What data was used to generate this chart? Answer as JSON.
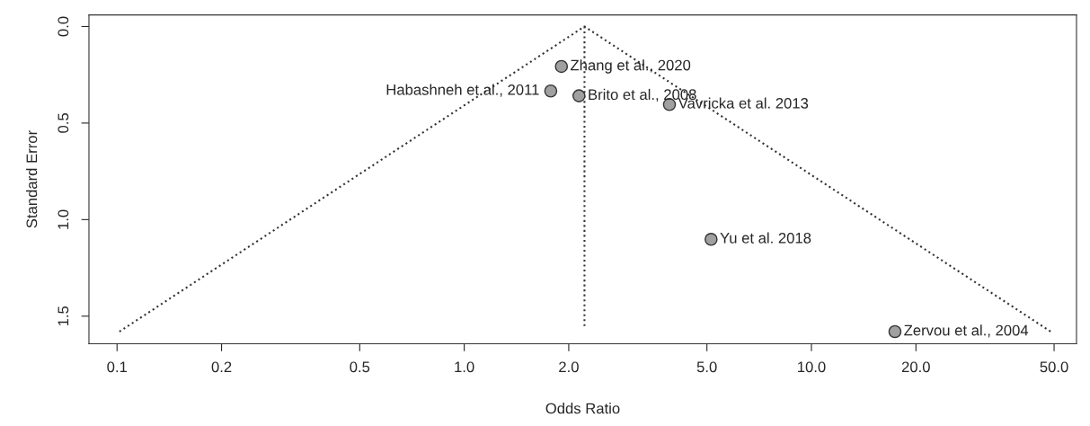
{
  "chart_data": {
    "type": "scatter",
    "xlabel": "Odds Ratio",
    "ylabel": "Standard Error",
    "log": "x",
    "grid": false,
    "marker": "circle",
    "xlim": [
      0.083,
      58
    ],
    "ylim": [
      1.643,
      -0.06
    ],
    "xticks": [
      {
        "value": 0.1,
        "label": "0.1"
      },
      {
        "value": 0.2,
        "label": "0.2"
      },
      {
        "value": 0.5,
        "label": "0.5"
      },
      {
        "value": 1,
        "label": "1.0"
      },
      {
        "value": 2,
        "label": "2.0"
      },
      {
        "value": 5,
        "label": "5.0"
      },
      {
        "value": 10,
        "label": "10.0"
      },
      {
        "value": 20,
        "label": "20.0"
      },
      {
        "value": 50,
        "label": "50.0"
      }
    ],
    "yticks": [
      {
        "value": 0,
        "label": "0.0"
      },
      {
        "value": 0.5,
        "label": "0.5"
      },
      {
        "value": 1,
        "label": "1.0"
      },
      {
        "value": 1.5,
        "label": "1.5"
      }
    ],
    "series": [
      {
        "color": "#a0a0a0",
        "x": [
          1.905,
          1.775,
          2.14,
          3.9,
          5.14,
          17.4
        ],
        "values": [
          0.207,
          0.334,
          0.359,
          0.404,
          1.102,
          1.58
        ]
      },
      {
        "type": "line",
        "color": "#333333",
        "line_style": "dotted",
        "marker": "none",
        "x": [
          0.1016,
          2.22,
          48.9
        ],
        "values": [
          1.58,
          0,
          1.58
        ]
      },
      {
        "type": "line",
        "color": "#333333",
        "line_style": "dotted",
        "marker": "none",
        "x": [
          2.22,
          2.22
        ],
        "values": [
          0,
          1.565
        ]
      }
    ],
    "annotations": [
      {
        "text": "Zhang et al., 2020",
        "x": 1.905,
        "y": 0.207
      },
      {
        "text": "Habashneh et al., 2011",
        "x": 1.775,
        "y": 0.334
      },
      {
        "text": "Brito et al., 2008",
        "x": 2.14,
        "y": 0.359
      },
      {
        "text": "Vavricka et al. 2013",
        "x": 3.9,
        "y": 0.404
      },
      {
        "text": "Yu et al. 2018",
        "x": 5.14,
        "y": 1.102
      },
      {
        "text": "Zervou et al., 2004",
        "x": 17.4,
        "y": 1.58
      }
    ]
  }
}
